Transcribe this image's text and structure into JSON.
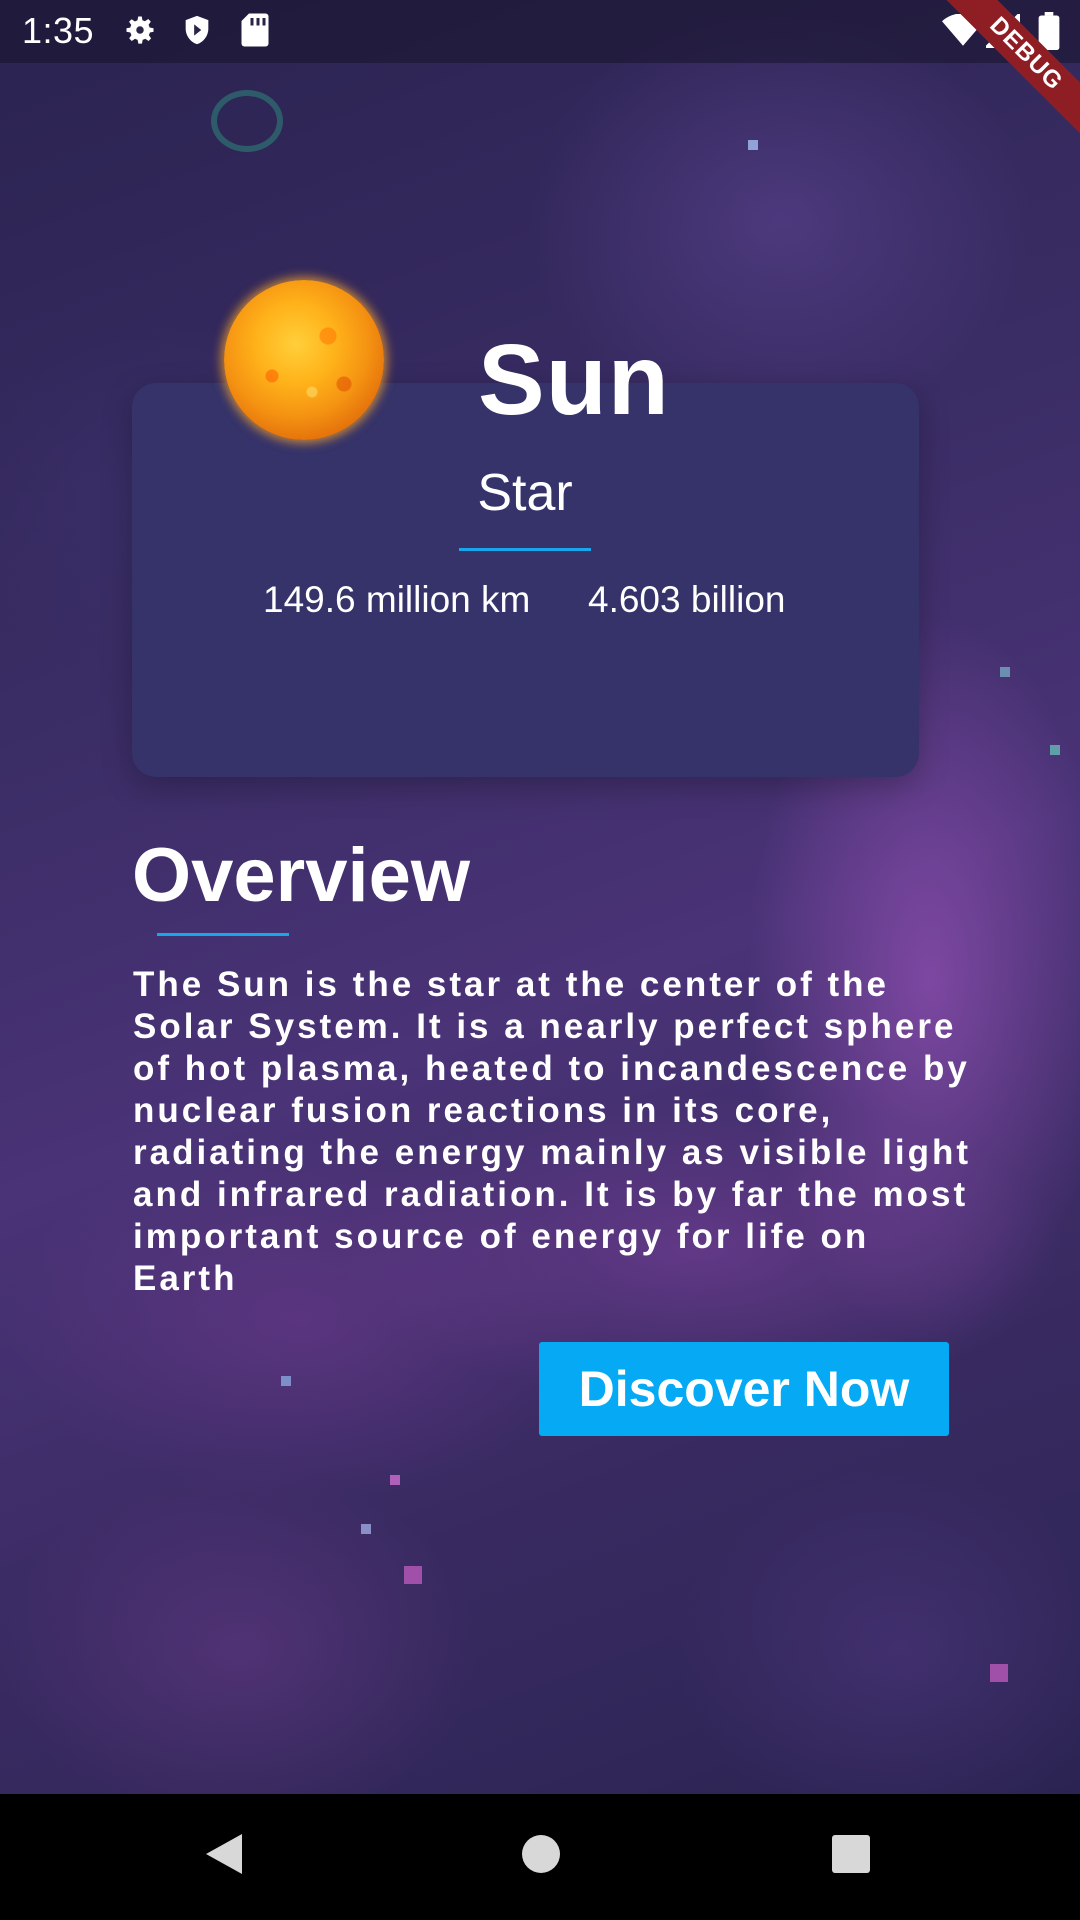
{
  "status_bar": {
    "time": "1:35",
    "icons": [
      "gear-icon",
      "shield-icon",
      "sd-card-icon",
      "wifi-icon",
      "signal-icon",
      "battery-icon"
    ],
    "debug_label": "DEBUG"
  },
  "planet": {
    "name": "Sun",
    "type": "Star",
    "distance": "149.6 million km",
    "age": "4.603 billion",
    "image_icon": "sun-image"
  },
  "overview": {
    "title": "Overview",
    "text": "The Sun is the star at the center of the Solar System. It is a nearly perfect sphere of hot plasma, heated to incandescence by nuclear fusion reactions in its core, radiating the energy mainly as visible light and infrared radiation. It is by far the most important source of energy for life on Earth"
  },
  "actions": {
    "discover_label": "Discover Now"
  },
  "nav_bar": {
    "icons": [
      "back-icon",
      "home-icon",
      "recents-icon"
    ]
  },
  "colors": {
    "accent": "#05a9f4",
    "underline": "#18a7ea",
    "card": "#35336a",
    "debug": "#8f1d24"
  }
}
